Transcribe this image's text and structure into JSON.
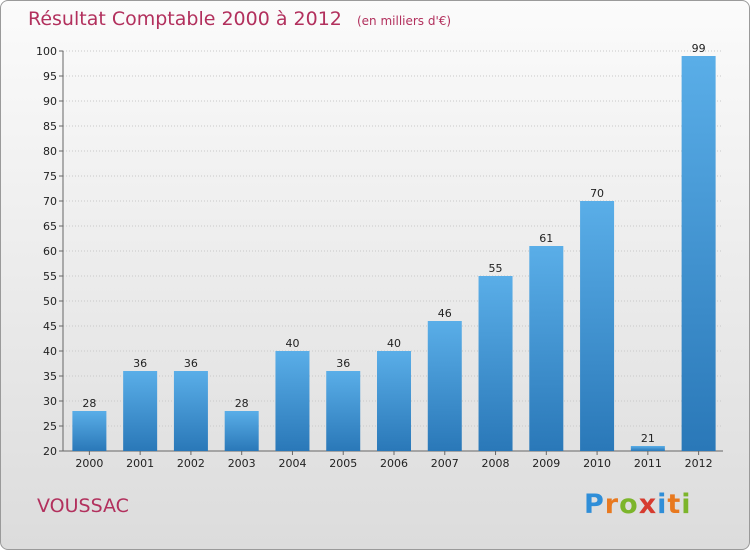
{
  "header": {
    "title": "Résultat Comptable 2000 à 2012",
    "subtitle": "(en milliers d'€)"
  },
  "footer": {
    "town": "VOUSSAC",
    "brand_letters": [
      "P",
      "r",
      "o",
      "x",
      "i",
      "t",
      "i"
    ],
    "brand_colors": [
      "#2f8ed8",
      "#e8791f",
      "#7cb52b",
      "#d63b2f",
      "#2f8ed8",
      "#e8791f",
      "#7cb52b"
    ]
  },
  "chart_data": {
    "type": "bar",
    "categories": [
      "2000",
      "2001",
      "2002",
      "2003",
      "2004",
      "2005",
      "2006",
      "2007",
      "2008",
      "2009",
      "2010",
      "2011",
      "2012"
    ],
    "values": [
      28,
      36,
      36,
      28,
      40,
      36,
      40,
      46,
      55,
      61,
      70,
      21,
      99
    ],
    "ylim": [
      20,
      100
    ],
    "yticks": [
      20,
      25,
      30,
      35,
      40,
      45,
      50,
      55,
      60,
      65,
      70,
      75,
      80,
      85,
      90,
      95,
      100
    ],
    "grid": true,
    "bar_color_top": "#5aaee8",
    "bar_color_bottom": "#2a78b8"
  }
}
